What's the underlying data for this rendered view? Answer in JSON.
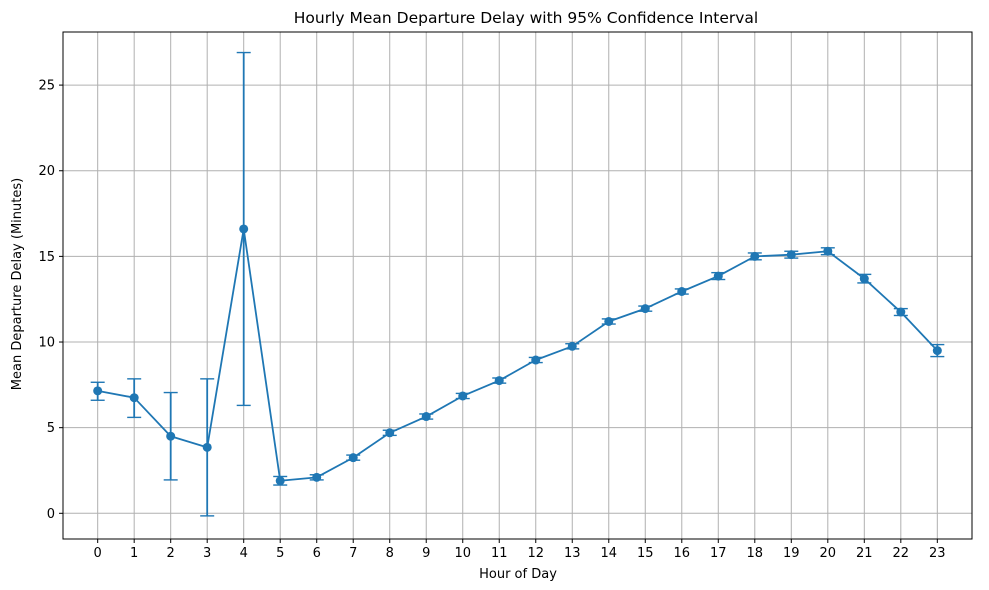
{
  "chart_data": {
    "type": "line",
    "title": "Hourly Mean Departure Delay with 95% Confidence Interval",
    "xlabel": "Hour of Day",
    "ylabel": "Mean Departure Delay (Minutes)",
    "x": [
      0,
      1,
      2,
      3,
      4,
      5,
      6,
      7,
      8,
      9,
      10,
      11,
      12,
      13,
      14,
      15,
      16,
      17,
      18,
      19,
      20,
      21,
      22,
      23
    ],
    "x_ticks": [
      "0",
      "1",
      "2",
      "3",
      "4",
      "5",
      "6",
      "7",
      "8",
      "9",
      "10",
      "11",
      "12",
      "13",
      "14",
      "15",
      "16",
      "17",
      "18",
      "19",
      "20",
      "21",
      "22",
      "23"
    ],
    "y_ticks": [
      "0",
      "5",
      "10",
      "15",
      "20",
      "25"
    ],
    "y_tick_values": [
      0,
      5,
      10,
      15,
      20,
      25
    ],
    "xlim": [
      -0.95,
      23.95
    ],
    "ylim": [
      -1.5,
      28.1
    ],
    "grid": true,
    "legend": "none",
    "color": "#1f77b4",
    "series": [
      {
        "values": [
          7.15,
          6.75,
          4.5,
          3.85,
          16.6,
          1.9,
          2.1,
          3.25,
          4.7,
          5.65,
          6.85,
          7.75,
          8.95,
          9.75,
          11.2,
          11.95,
          12.95,
          13.85,
          15.0,
          15.1,
          15.3,
          13.7,
          11.75,
          9.5
        ],
        "ci_lower": [
          6.6,
          5.6,
          1.95,
          -0.15,
          6.3,
          1.65,
          1.95,
          3.1,
          4.55,
          5.5,
          6.7,
          7.6,
          8.8,
          9.6,
          11.05,
          11.8,
          12.8,
          13.65,
          14.8,
          14.9,
          15.1,
          13.45,
          11.55,
          9.15
        ],
        "ci_upper": [
          7.65,
          7.85,
          7.05,
          7.85,
          26.9,
          2.15,
          2.25,
          3.4,
          4.85,
          5.8,
          7.0,
          7.9,
          9.1,
          9.9,
          11.35,
          12.1,
          13.1,
          14.05,
          15.2,
          15.3,
          15.5,
          13.95,
          11.95,
          9.85
        ]
      }
    ]
  }
}
